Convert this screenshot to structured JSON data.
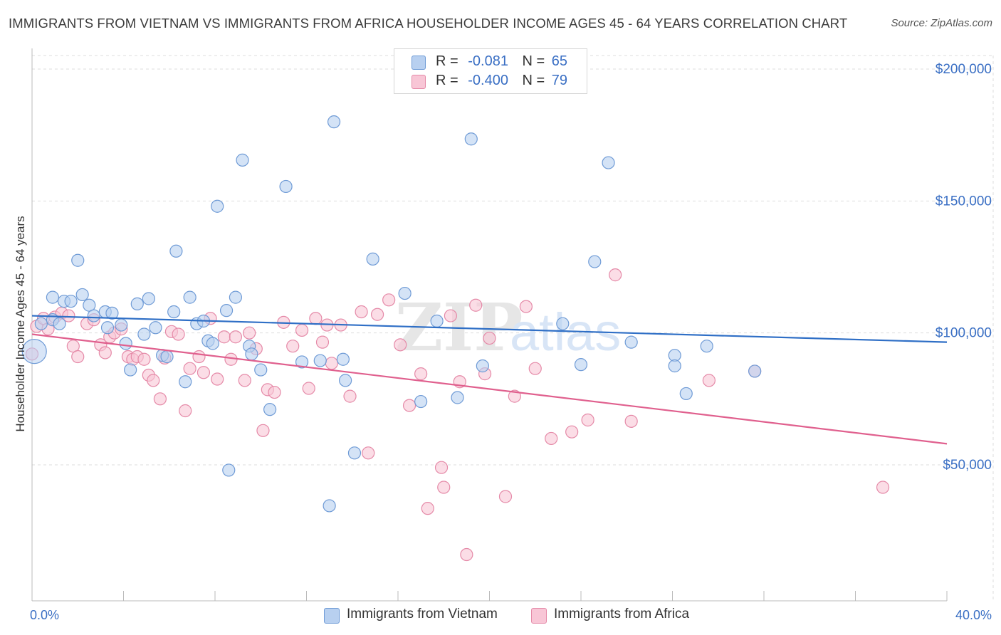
{
  "title": "IMMIGRANTS FROM VIETNAM VS IMMIGRANTS FROM AFRICA HOUSEHOLDER INCOME AGES 45 - 64 YEARS CORRELATION CHART",
  "source": "Source: ZipAtlas.com",
  "watermark": "ZIPatlas",
  "legend": {
    "vietnam": {
      "r_label": "R =",
      "r_value": "-0.081",
      "n_label": "N =",
      "n_value": "65"
    },
    "africa": {
      "r_label": "R =",
      "r_value": "-0.400",
      "n_label": "N =",
      "n_value": "79"
    }
  },
  "colors": {
    "vietnam_fill": "#b8d0f0",
    "vietnam_stroke": "#6f9bd6",
    "vietnam_line": "#2f6fc6",
    "africa_fill": "#f8c6d6",
    "africa_stroke": "#e58aa8",
    "africa_line": "#e0608e",
    "axis_label": "#3a6fc4",
    "grid": "#dddddd"
  },
  "chart_data": {
    "type": "scatter",
    "title": "IMMIGRANTS FROM VIETNAM VS IMMIGRANTS FROM AFRICA HOUSEHOLDER INCOME AGES 45 - 64 YEARS CORRELATION CHART",
    "xlabel": "",
    "ylabel": "Householder Income Ages 45 - 64 years",
    "xlim": [
      0,
      40
    ],
    "ylim": [
      0,
      210000
    ],
    "x_tick_labels": [
      "0.0%",
      "40.0%"
    ],
    "y_ticks": [
      50000,
      100000,
      150000,
      200000
    ],
    "y_tick_labels": [
      "$50,000",
      "$100,000",
      "$150,000",
      "$200,000"
    ],
    "grid": "horizontal dashed",
    "legend_position": "top-center",
    "series": [
      {
        "name": "Immigrants from Vietnam",
        "points": [
          [
            0.4,
            103500
          ],
          [
            0.9,
            105000
          ],
          [
            0.9,
            113500
          ],
          [
            1.2,
            103500
          ],
          [
            1.4,
            112000
          ],
          [
            1.7,
            112000
          ],
          [
            2.0,
            127500
          ],
          [
            2.2,
            114500
          ],
          [
            2.5,
            110500
          ],
          [
            2.7,
            106500
          ],
          [
            3.2,
            108000
          ],
          [
            3.3,
            102000
          ],
          [
            3.5,
            107500
          ],
          [
            3.9,
            103000
          ],
          [
            4.1,
            96000
          ],
          [
            4.3,
            86000
          ],
          [
            4.6,
            111000
          ],
          [
            4.9,
            99500
          ],
          [
            5.1,
            113000
          ],
          [
            5.4,
            102000
          ],
          [
            5.7,
            91500
          ],
          [
            5.9,
            91000
          ],
          [
            6.2,
            108000
          ],
          [
            6.3,
            131000
          ],
          [
            6.7,
            81500
          ],
          [
            6.9,
            113500
          ],
          [
            7.2,
            103500
          ],
          [
            7.5,
            104500
          ],
          [
            7.7,
            97000
          ],
          [
            7.9,
            96000
          ],
          [
            8.1,
            148000
          ],
          [
            8.5,
            108500
          ],
          [
            8.6,
            48000
          ],
          [
            8.9,
            113500
          ],
          [
            9.2,
            165500
          ],
          [
            9.5,
            95000
          ],
          [
            9.6,
            92000
          ],
          [
            10.0,
            86000
          ],
          [
            10.4,
            71000
          ],
          [
            11.1,
            155500
          ],
          [
            11.8,
            89000
          ],
          [
            12.6,
            89500
          ],
          [
            13.0,
            34500
          ],
          [
            13.2,
            180000
          ],
          [
            13.6,
            90000
          ],
          [
            13.7,
            82000
          ],
          [
            14.1,
            54500
          ],
          [
            14.9,
            128000
          ],
          [
            16.3,
            115000
          ],
          [
            17.0,
            74000
          ],
          [
            17.7,
            104500
          ],
          [
            18.6,
            75500
          ],
          [
            19.2,
            173500
          ],
          [
            19.7,
            87500
          ],
          [
            23.2,
            103500
          ],
          [
            24.0,
            88000
          ],
          [
            24.6,
            127000
          ],
          [
            25.2,
            164500
          ],
          [
            26.2,
            96500
          ],
          [
            28.1,
            91500
          ],
          [
            28.1,
            87500
          ],
          [
            28.6,
            77000
          ],
          [
            29.5,
            95000
          ],
          [
            31.6,
            85500
          ],
          [
            0.1,
            93000
          ]
        ]
      },
      {
        "name": "Immigrants from Africa",
        "points": [
          [
            0.2,
            102500
          ],
          [
            0.5,
            105500
          ],
          [
            0.7,
            101500
          ],
          [
            1.0,
            106000
          ],
          [
            1.3,
            107500
          ],
          [
            1.6,
            106500
          ],
          [
            1.8,
            95000
          ],
          [
            2.0,
            91000
          ],
          [
            2.4,
            103500
          ],
          [
            2.7,
            105000
          ],
          [
            3.0,
            95500
          ],
          [
            3.2,
            92500
          ],
          [
            3.4,
            98500
          ],
          [
            3.6,
            100000
          ],
          [
            3.9,
            101500
          ],
          [
            4.2,
            91000
          ],
          [
            4.4,
            90000
          ],
          [
            4.6,
            91000
          ],
          [
            4.9,
            90000
          ],
          [
            5.1,
            84000
          ],
          [
            5.3,
            82000
          ],
          [
            5.6,
            75000
          ],
          [
            5.8,
            90500
          ],
          [
            6.1,
            100500
          ],
          [
            6.4,
            99500
          ],
          [
            6.7,
            70500
          ],
          [
            6.9,
            86500
          ],
          [
            7.3,
            91000
          ],
          [
            7.5,
            85000
          ],
          [
            7.8,
            105500
          ],
          [
            8.1,
            82500
          ],
          [
            8.4,
            98500
          ],
          [
            8.7,
            90000
          ],
          [
            8.9,
            98500
          ],
          [
            9.3,
            82000
          ],
          [
            9.5,
            100000
          ],
          [
            9.8,
            94000
          ],
          [
            10.1,
            63000
          ],
          [
            10.3,
            78500
          ],
          [
            10.6,
            77500
          ],
          [
            11.0,
            104000
          ],
          [
            11.4,
            95000
          ],
          [
            11.8,
            101000
          ],
          [
            12.1,
            79000
          ],
          [
            12.4,
            105500
          ],
          [
            12.7,
            96500
          ],
          [
            13.1,
            88500
          ],
          [
            13.5,
            103000
          ],
          [
            13.9,
            76000
          ],
          [
            14.4,
            108000
          ],
          [
            14.7,
            54500
          ],
          [
            15.1,
            107000
          ],
          [
            15.6,
            112500
          ],
          [
            16.1,
            95500
          ],
          [
            16.5,
            72500
          ],
          [
            17.0,
            84500
          ],
          [
            17.3,
            33500
          ],
          [
            17.9,
            49000
          ],
          [
            18.0,
            41500
          ],
          [
            18.3,
            106500
          ],
          [
            18.7,
            81500
          ],
          [
            19.0,
            16000
          ],
          [
            19.4,
            110500
          ],
          [
            19.8,
            84500
          ],
          [
            20.0,
            98000
          ],
          [
            20.7,
            38000
          ],
          [
            21.1,
            76000
          ],
          [
            21.6,
            110000
          ],
          [
            22.0,
            86500
          ],
          [
            22.7,
            60000
          ],
          [
            23.6,
            62500
          ],
          [
            24.3,
            67000
          ],
          [
            25.5,
            122000
          ],
          [
            26.2,
            66500
          ],
          [
            29.6,
            82000
          ],
          [
            31.6,
            85500
          ],
          [
            37.2,
            41500
          ],
          [
            0.0,
            92000
          ],
          [
            12.9,
            103000
          ]
        ]
      }
    ],
    "trend_lines": [
      {
        "series": "Immigrants from Vietnam",
        "x": [
          0,
          40
        ],
        "y": [
          106500,
          96500
        ]
      },
      {
        "series": "Immigrants from Africa",
        "x": [
          0,
          40
        ],
        "y": [
          99500,
          58000
        ]
      }
    ]
  },
  "bottom_legend": [
    "Immigrants from Vietnam",
    "Immigrants from Africa"
  ]
}
